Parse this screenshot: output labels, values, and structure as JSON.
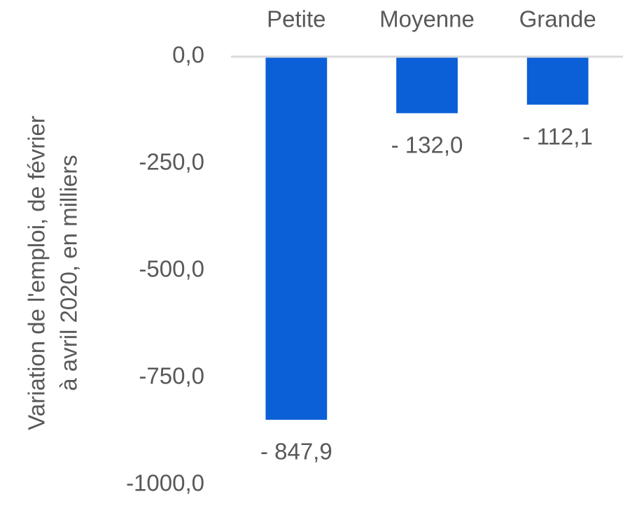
{
  "chart_data": {
    "type": "bar",
    "y_label": [
      "Variation de l'emploi, de février",
      "à avril 2020, en milliers"
    ],
    "categories": [
      "Petite",
      "Moyenne",
      "Grande"
    ],
    "values": [
      -847.9,
      -132.0,
      -112.1
    ],
    "value_labels": [
      "- 847,9",
      "- 132,0",
      "- 112,1"
    ],
    "color": "#0b5fd7",
    "ylim": [
      -1000,
      0
    ],
    "yticks": [
      {
        "value": 0,
        "label": "0,0"
      },
      {
        "value": -250,
        "label": "-250,0"
      },
      {
        "value": -500,
        "label": "-500,0"
      },
      {
        "value": -750,
        "label": "-750,0"
      },
      {
        "value": -1000,
        "label": "-1000,0"
      }
    ],
    "grid": false
  }
}
